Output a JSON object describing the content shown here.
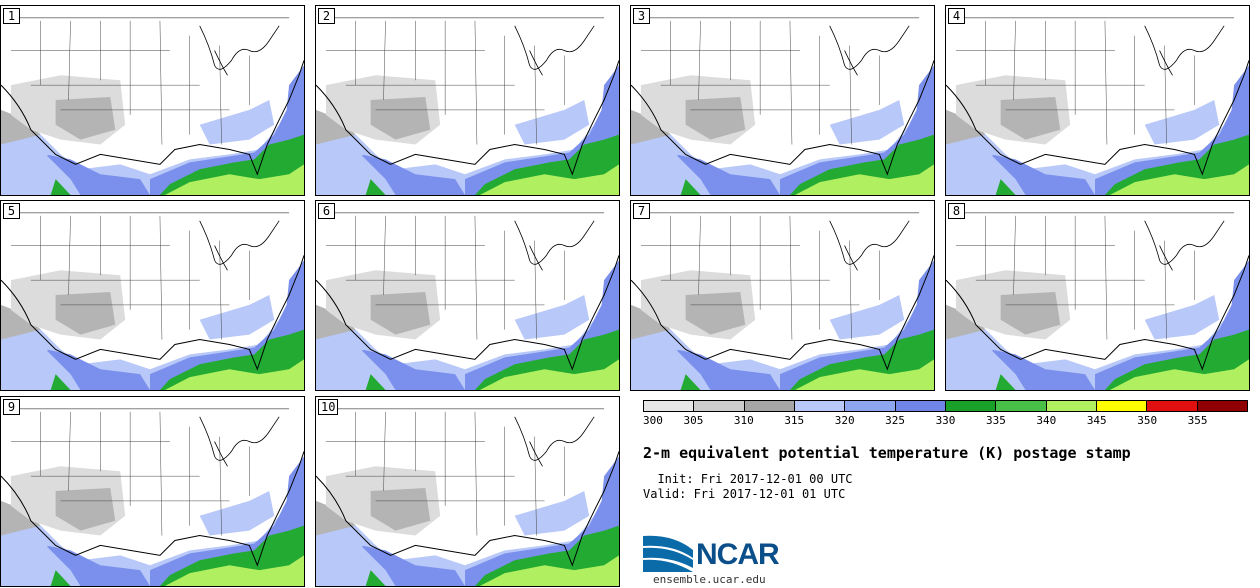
{
  "panels": [
    {
      "label": "1"
    },
    {
      "label": "2"
    },
    {
      "label": "3"
    },
    {
      "label": "4"
    },
    {
      "label": "5"
    },
    {
      "label": "6"
    },
    {
      "label": "7"
    },
    {
      "label": "8"
    },
    {
      "label": "9"
    },
    {
      "label": "10"
    }
  ],
  "colorbar": {
    "ticks": [
      "300",
      "305",
      "310",
      "315",
      "320",
      "325",
      "330",
      "335",
      "340",
      "345",
      "350",
      "355"
    ],
    "colors": [
      "#e6e6e6",
      "#cccccc",
      "#a6a6a6",
      "#b8c8f8",
      "#8ea6f0",
      "#6f86e8",
      "#18a028",
      "#48c048",
      "#b0f060",
      "#ffff00",
      "#e01010",
      "#900000"
    ]
  },
  "title": "2-m equivalent potential temperature (K) postage stamp",
  "init": "  Init: Fri 2017-12-01 00 UTC",
  "valid": "Valid: Fri 2017-12-01 01 UTC",
  "logo": {
    "text": "NCAR",
    "url": "ensemble.ucar.edu"
  },
  "map_colors": {
    "land": "#ffffff",
    "light_gray": "#dcdcdc",
    "mid_gray": "#b4b4b4",
    "light_blue": "#b8c8f8",
    "blue": "#7a90ec",
    "green": "#22aa33",
    "lime": "#b0f060",
    "yellow": "#ffff00"
  }
}
